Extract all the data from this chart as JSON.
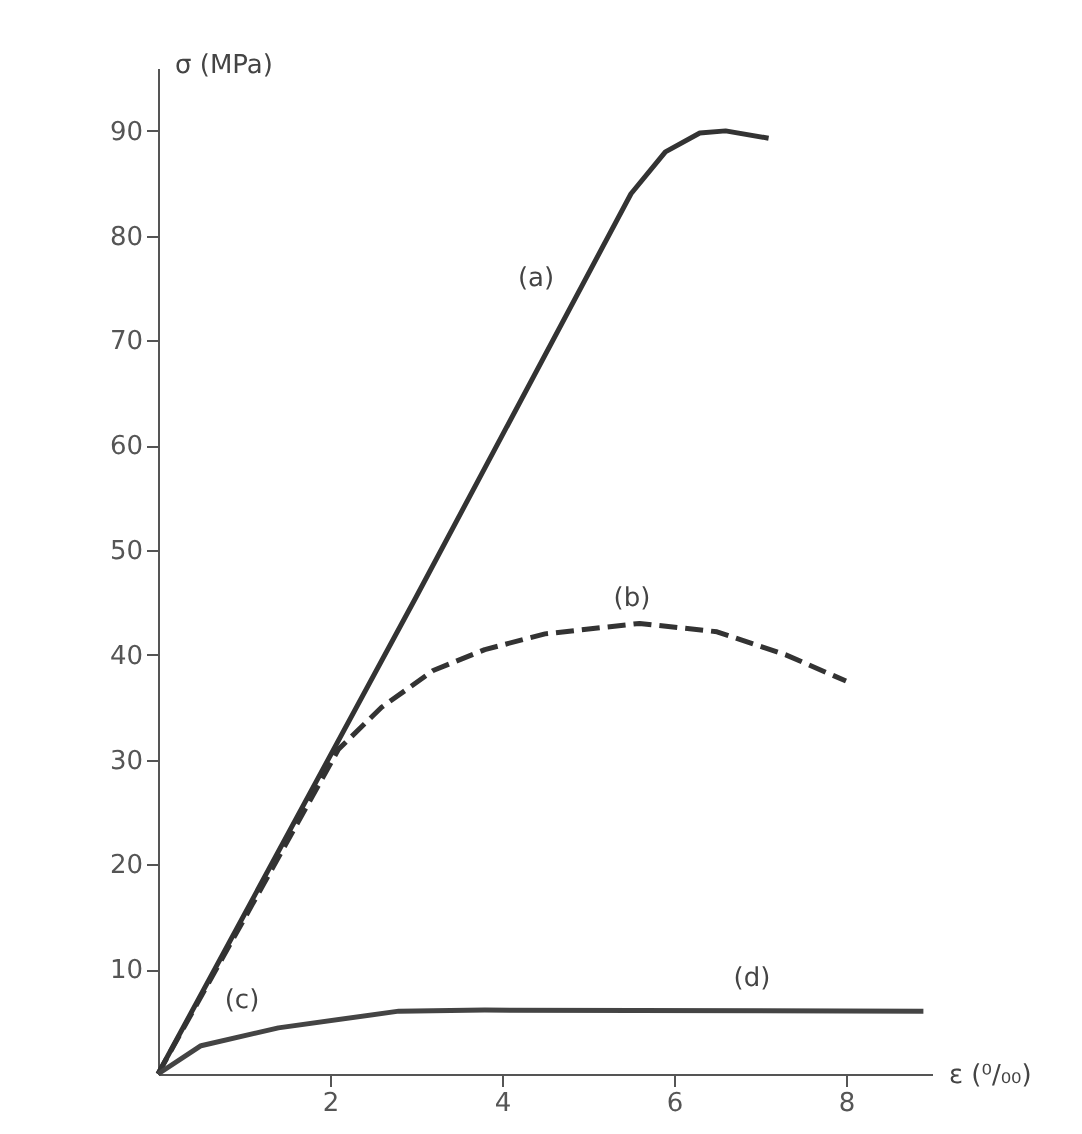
{
  "chart_data": {
    "type": "line",
    "xlabel": "ε (⁰/₀₀)",
    "ylabel": "σ (MPa)",
    "xlim": [
      0,
      9
    ],
    "ylim": [
      0,
      96
    ],
    "xticks": [
      2,
      4,
      6,
      8
    ],
    "yticks": [
      10,
      20,
      30,
      40,
      50,
      60,
      70,
      80,
      90
    ],
    "grid": false,
    "marker": "none",
    "series": [
      {
        "color": "#333333",
        "line_style": "solid",
        "x": [
          0,
          3,
          5.5,
          5.9,
          6.3,
          6.6,
          7.1
        ],
        "values": [
          0,
          45.5,
          84,
          88,
          89.8,
          90,
          89.3
        ]
      },
      {
        "color": "#333333",
        "line_style": "dashed",
        "x": [
          0,
          2.1,
          2.6,
          3.2,
          3.8,
          4.5,
          5.6,
          6.5,
          7.3,
          8
        ],
        "values": [
          0,
          31,
          35,
          38.5,
          40.5,
          42,
          43,
          42.2,
          40,
          37.5
        ]
      },
      {
        "color": "#444444",
        "line_style": "solid",
        "x": [
          0,
          0.5,
          1.4,
          2.8,
          3.8,
          8.9
        ],
        "values": [
          0,
          2.7,
          4.4,
          6,
          6.1,
          6
        ]
      }
    ],
    "annotations": [
      "(a)",
      "(b)",
      "(c)",
      "(d)"
    ]
  }
}
